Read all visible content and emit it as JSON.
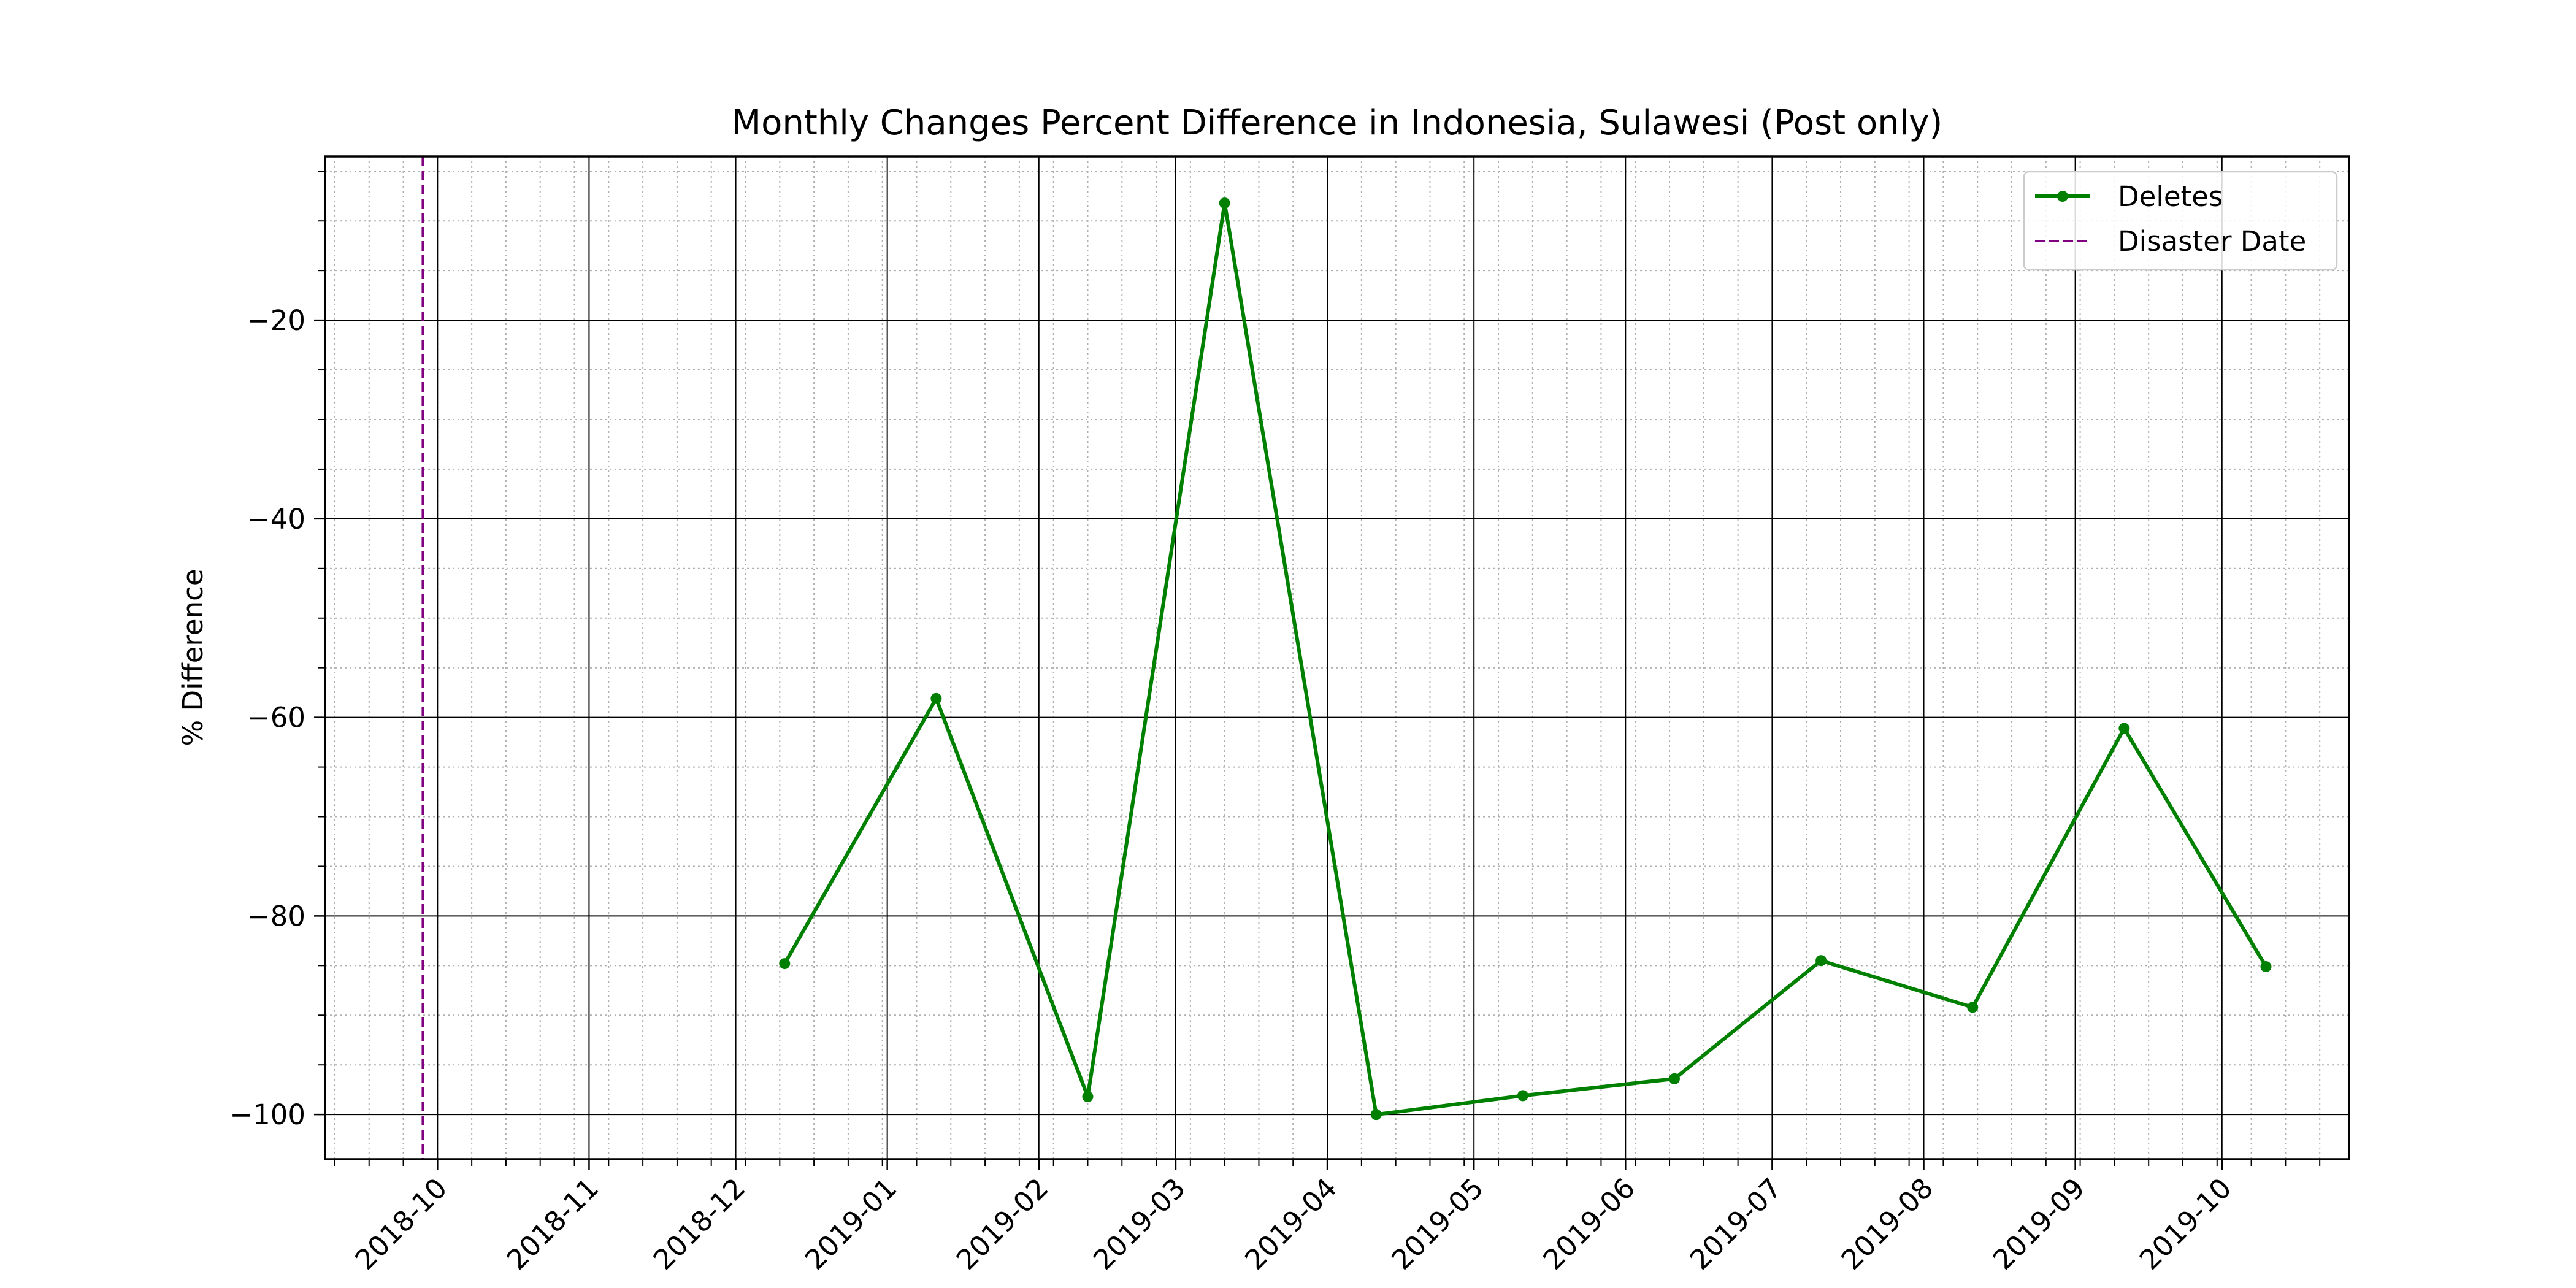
{
  "chart_data": {
    "type": "line",
    "title": "Monthly Changes Percent Difference in Indonesia, Sulawesi (Post only)",
    "xlabel": "",
    "ylabel": "% Difference",
    "x_type": "date",
    "xlim": [
      "2018-09-08",
      "2019-10-27"
    ],
    "ylim": [
      -104.5,
      -3.5
    ],
    "x_ticks": [
      "2018-10-01",
      "2018-11-01",
      "2018-12-01",
      "2019-01-01",
      "2019-02-01",
      "2019-03-01",
      "2019-04-01",
      "2019-05-01",
      "2019-06-01",
      "2019-07-01",
      "2019-08-01",
      "2019-09-01",
      "2019-10-01"
    ],
    "x_tick_labels": [
      "2018-10",
      "2018-11",
      "2018-12",
      "2019-01",
      "2019-02",
      "2019-03",
      "2019-04",
      "2019-05",
      "2019-06",
      "2019-07",
      "2019-08",
      "2019-09",
      "2019-10"
    ],
    "y_ticks": [
      -20,
      -40,
      -60,
      -80,
      -100
    ],
    "y_tick_labels": [
      "−20",
      "−40",
      "−60",
      "−80",
      "−100"
    ],
    "grid": true,
    "minor_grid": true,
    "legend_position": "top-right",
    "series": [
      {
        "name": "Deletes",
        "color": "#008000",
        "marker": "circle",
        "line_style": "solid",
        "x": [
          "2018-12-11",
          "2019-01-11",
          "2019-02-11",
          "2019-03-11",
          "2019-04-11",
          "2019-05-11",
          "2019-06-11",
          "2019-07-11",
          "2019-08-11",
          "2019-09-11",
          "2019-10-10"
        ],
        "y": [
          -84.8,
          -58.1,
          -98.2,
          -8.2,
          -100.0,
          -98.1,
          -96.4,
          -84.5,
          -89.2,
          -61.1,
          -85.1
        ]
      }
    ],
    "annotations": [
      {
        "type": "vline",
        "name": "Disaster Date",
        "x": "2018-09-28",
        "color": "#800080",
        "line_style": "dashed"
      }
    ]
  }
}
